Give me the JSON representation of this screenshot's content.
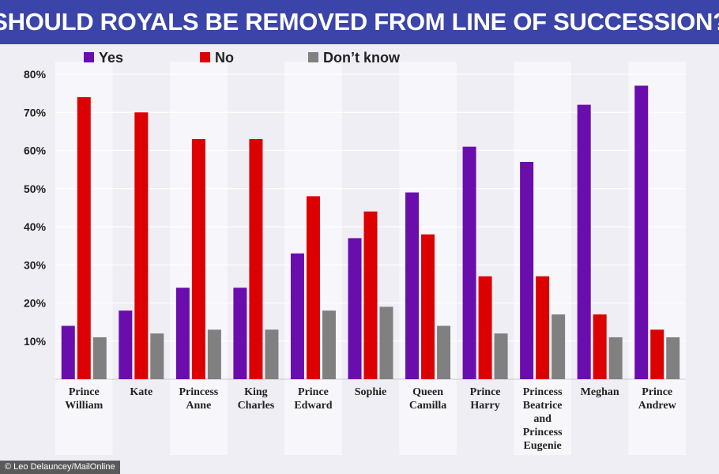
{
  "title": "SHOULD ROYALS BE REMOVED FROM LINE OF SUCCESSION?",
  "credit": "© Leo Delauncey/MailOnline",
  "chart_data": {
    "type": "bar",
    "title": "SHOULD ROYALS BE REMOVED FROM LINE OF SUCCESSION?",
    "xlabel": "",
    "ylabel": "",
    "ylim": [
      0,
      80
    ],
    "yticks": [
      "10%",
      "20%",
      "30%",
      "40%",
      "50%",
      "60%",
      "70%",
      "80%"
    ],
    "ytick_values": [
      10,
      20,
      30,
      40,
      50,
      60,
      70,
      80
    ],
    "grid": true,
    "legend_position": "top-left",
    "categories": [
      [
        "Prince",
        "William"
      ],
      [
        "Kate"
      ],
      [
        "Princess",
        "Anne"
      ],
      [
        "King",
        "Charles"
      ],
      [
        "Prince",
        "Edward"
      ],
      [
        "Sophie"
      ],
      [
        "Queen",
        "Camilla"
      ],
      [
        "Prince",
        "Harry"
      ],
      [
        "Princess",
        "Beatrice",
        "and",
        "Princess",
        "Eugenie"
      ],
      [
        "Meghan"
      ],
      [
        "Prince",
        "Andrew"
      ]
    ],
    "series": [
      {
        "name": "Yes",
        "color": "#6a0dad",
        "values": [
          14,
          18,
          24,
          24,
          33,
          37,
          49,
          61,
          57,
          72,
          77
        ]
      },
      {
        "name": "No",
        "color": "#dd0000",
        "values": [
          74,
          70,
          63,
          63,
          48,
          44,
          38,
          27,
          27,
          17,
          13
        ]
      },
      {
        "name": "Don’t know",
        "color": "#808080",
        "values": [
          11,
          12,
          13,
          13,
          18,
          19,
          14,
          12,
          17,
          11,
          11
        ]
      }
    ]
  }
}
